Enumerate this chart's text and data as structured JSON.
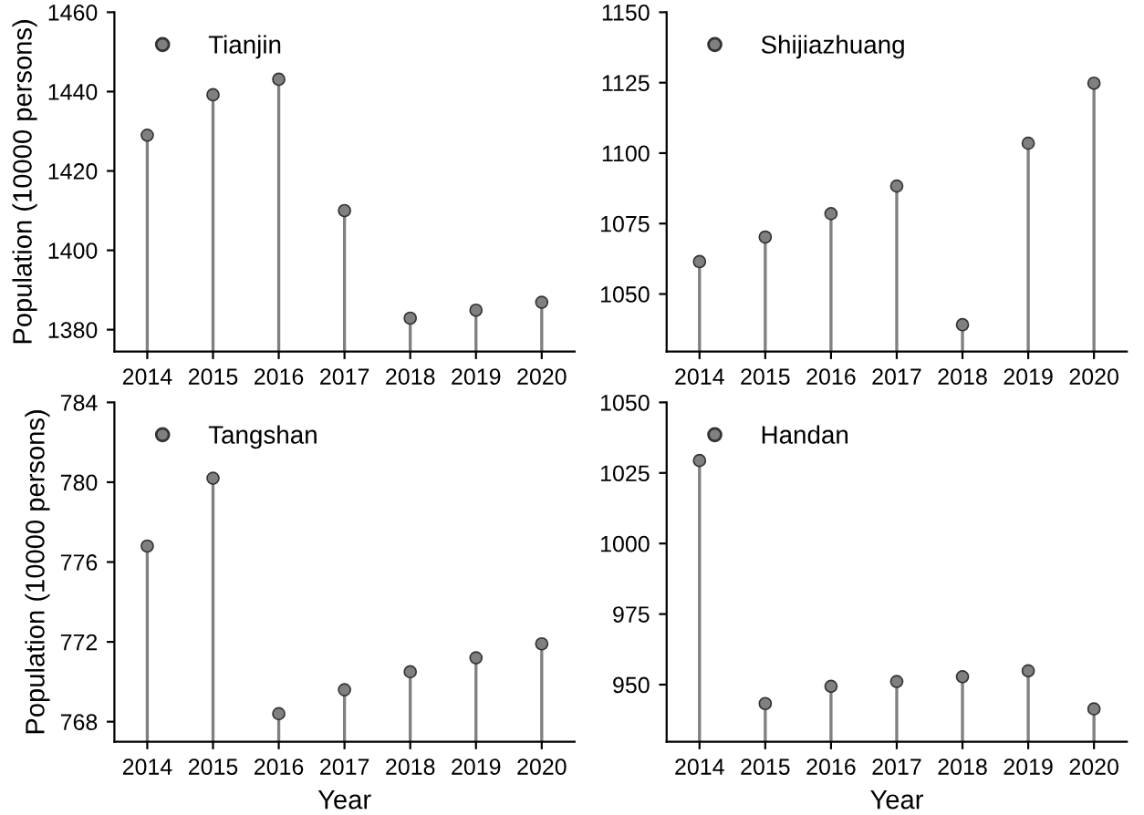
{
  "chart_data": [
    {
      "type": "lollipop",
      "categories": [
        "2014",
        "2015",
        "2016",
        "2017",
        "2018",
        "2019",
        "2020"
      ],
      "ylabel": "Population (10000 persons)",
      "ylim": [
        1374.5,
        1460
      ],
      "yticks": [
        1380,
        1400,
        1420,
        1440,
        1460
      ],
      "legend": "top left",
      "marker": "circle",
      "series": [
        {
          "name": "Tianjin",
          "color": "#808080",
          "values": [
            1429,
            1439.2,
            1443.1,
            1410,
            1382.9,
            1384.9,
            1386.9
          ]
        }
      ]
    },
    {
      "type": "lollipop",
      "categories": [
        "2014",
        "2015",
        "2016",
        "2017",
        "2018",
        "2019",
        "2020"
      ],
      "ylim": [
        1029.6,
        1150
      ],
      "yticks": [
        1050,
        1075,
        1100,
        1125,
        1150
      ],
      "legend": "top left",
      "marker": "circle",
      "series": [
        {
          "name": "Shijiazhuang",
          "color": "#808080",
          "values": [
            1061.5,
            1070.2,
            1078.5,
            1088.3,
            1039.1,
            1103.5,
            1124.8
          ]
        }
      ]
    },
    {
      "type": "lollipop",
      "categories": [
        "2014",
        "2015",
        "2016",
        "2017",
        "2018",
        "2019",
        "2020"
      ],
      "xlabel": "Year",
      "ylabel": "Population (10000 persons)",
      "ylim": [
        767.0,
        784
      ],
      "yticks": [
        768,
        772,
        776,
        780,
        784
      ],
      "legend": "top left",
      "marker": "circle",
      "series": [
        {
          "name": "Tangshan",
          "color": "#808080",
          "values": [
            776.8,
            780.2,
            768.4,
            769.6,
            770.5,
            771.2,
            771.9
          ]
        }
      ]
    },
    {
      "type": "lollipop",
      "categories": [
        "2014",
        "2015",
        "2016",
        "2017",
        "2018",
        "2019",
        "2020"
      ],
      "xlabel": "Year",
      "ylim": [
        929.8,
        1050
      ],
      "yticks": [
        950,
        975,
        1000,
        1025,
        1050
      ],
      "legend": "top left",
      "marker": "circle",
      "series": [
        {
          "name": "Handan",
          "color": "#808080",
          "values": [
            1029.4,
            943.3,
            949.4,
            951.1,
            952.8,
            954.9,
            941.4
          ]
        }
      ]
    }
  ]
}
